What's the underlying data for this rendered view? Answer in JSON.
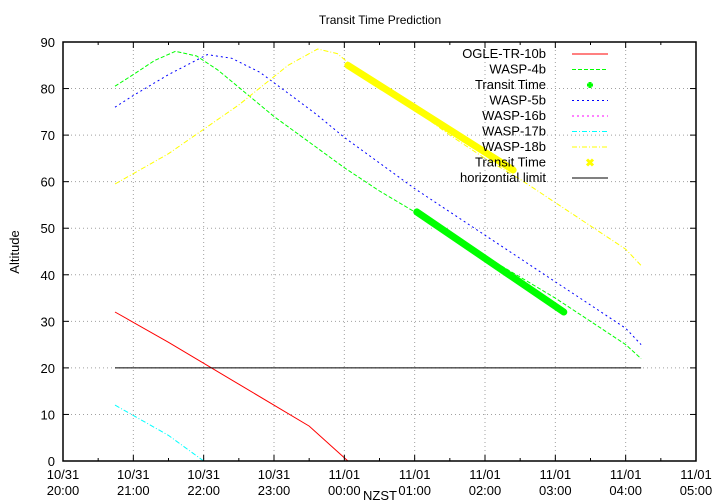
{
  "chart_data": {
    "type": "line",
    "title": "Transit Time Prediction",
    "xlabel": "NZST",
    "ylabel": "Altitude",
    "ylim": [
      0,
      90
    ],
    "yticks": [
      0,
      10,
      20,
      30,
      40,
      50,
      60,
      70,
      80,
      90
    ],
    "xlim_hours_after_start": [
      0,
      9
    ],
    "xticks": [
      {
        "h": 0,
        "date": "10/31",
        "time": "20:00"
      },
      {
        "h": 1,
        "date": "10/31",
        "time": "21:00"
      },
      {
        "h": 2,
        "date": "10/31",
        "time": "22:00"
      },
      {
        "h": 3,
        "date": "10/31",
        "time": "23:00"
      },
      {
        "h": 4,
        "date": "11/01",
        "time": "00:00"
      },
      {
        "h": 5,
        "date": "11/01",
        "time": "01:00"
      },
      {
        "h": 6,
        "date": "11/01",
        "time": "02:00"
      },
      {
        "h": 7,
        "date": "11/01",
        "time": "03:00"
      },
      {
        "h": 8,
        "date": "11/01",
        "time": "04:00"
      },
      {
        "h": 9,
        "date": "11/01",
        "time": "05:00"
      }
    ],
    "grid": true,
    "legend_position": "top-right",
    "series": [
      {
        "name": "OGLE-TR-10b",
        "color": "#ff0000",
        "style": "solid",
        "points": [
          [
            0.74,
            32
          ],
          [
            1.5,
            25.5
          ],
          [
            2.5,
            16.5
          ],
          [
            3.5,
            7.5
          ],
          [
            4.05,
            0
          ]
        ]
      },
      {
        "name": "WASP-4b",
        "color": "#00ff00",
        "style": "dashed",
        "points": [
          [
            0.74,
            80.5
          ],
          [
            1.0,
            83
          ],
          [
            1.3,
            86
          ],
          [
            1.6,
            88
          ],
          [
            1.9,
            87
          ],
          [
            2.2,
            84
          ],
          [
            2.6,
            79
          ],
          [
            3.0,
            74
          ],
          [
            3.5,
            68.5
          ],
          [
            4.0,
            63
          ],
          [
            4.5,
            58
          ],
          [
            5.0,
            53.5
          ],
          [
            5.5,
            48.5
          ],
          [
            6.0,
            44
          ],
          [
            6.5,
            39.5
          ],
          [
            7.0,
            35
          ],
          [
            7.5,
            30
          ],
          [
            8.0,
            25
          ],
          [
            8.22,
            22
          ]
        ]
      },
      {
        "name": "Transit Time",
        "color": "#00ff00",
        "style": "marker-plus",
        "for": "WASP-4b",
        "points": [
          [
            5.03,
            53.5
          ],
          [
            7.12,
            32
          ]
        ]
      },
      {
        "name": "WASP-5b",
        "color": "#0000ff",
        "style": "dotted",
        "points": [
          [
            0.74,
            76
          ],
          [
            1.0,
            78.5
          ],
          [
            1.5,
            83
          ],
          [
            2.05,
            87.3
          ],
          [
            2.4,
            86.5
          ],
          [
            2.8,
            83.5
          ],
          [
            3.2,
            79
          ],
          [
            3.6,
            74.5
          ],
          [
            4.0,
            69.5
          ],
          [
            4.5,
            64
          ],
          [
            5.0,
            58.5
          ],
          [
            5.5,
            53.5
          ],
          [
            6.0,
            48.5
          ],
          [
            6.5,
            43.5
          ],
          [
            7.0,
            38.5
          ],
          [
            7.5,
            33.5
          ],
          [
            8.0,
            28.5
          ],
          [
            8.22,
            25
          ]
        ]
      },
      {
        "name": "WASP-16b",
        "color": "#ff00ff",
        "style": "dotted",
        "points": []
      },
      {
        "name": "WASP-17b",
        "color": "#00ffff",
        "style": "dash-dot",
        "points": [
          [
            0.74,
            12
          ],
          [
            1.5,
            5.5
          ],
          [
            2.0,
            0
          ]
        ]
      },
      {
        "name": "WASP-18b",
        "color": "#ffff00",
        "style": "dash-dot",
        "points": [
          [
            0.74,
            59.5
          ],
          [
            1.5,
            66
          ],
          [
            2.5,
            76.5
          ],
          [
            3.2,
            85
          ],
          [
            3.62,
            88.5
          ],
          [
            3.9,
            87.5
          ],
          [
            4.1,
            85
          ],
          [
            4.5,
            81
          ],
          [
            5.0,
            75.5
          ],
          [
            5.5,
            70
          ],
          [
            6.0,
            65
          ],
          [
            6.5,
            60.5
          ],
          [
            7.0,
            55.5
          ],
          [
            7.5,
            50.5
          ],
          [
            8.0,
            45.5
          ],
          [
            8.22,
            42
          ]
        ]
      },
      {
        "name": "Transit Time",
        "color": "#ffff00",
        "style": "marker-x",
        "for": "WASP-18b",
        "points": [
          [
            4.05,
            85
          ],
          [
            6.4,
            62.5
          ]
        ]
      },
      {
        "name": "horizontial limit",
        "color": "#000000",
        "style": "solid",
        "points": [
          [
            0.74,
            20
          ],
          [
            8.22,
            20
          ]
        ]
      }
    ]
  }
}
